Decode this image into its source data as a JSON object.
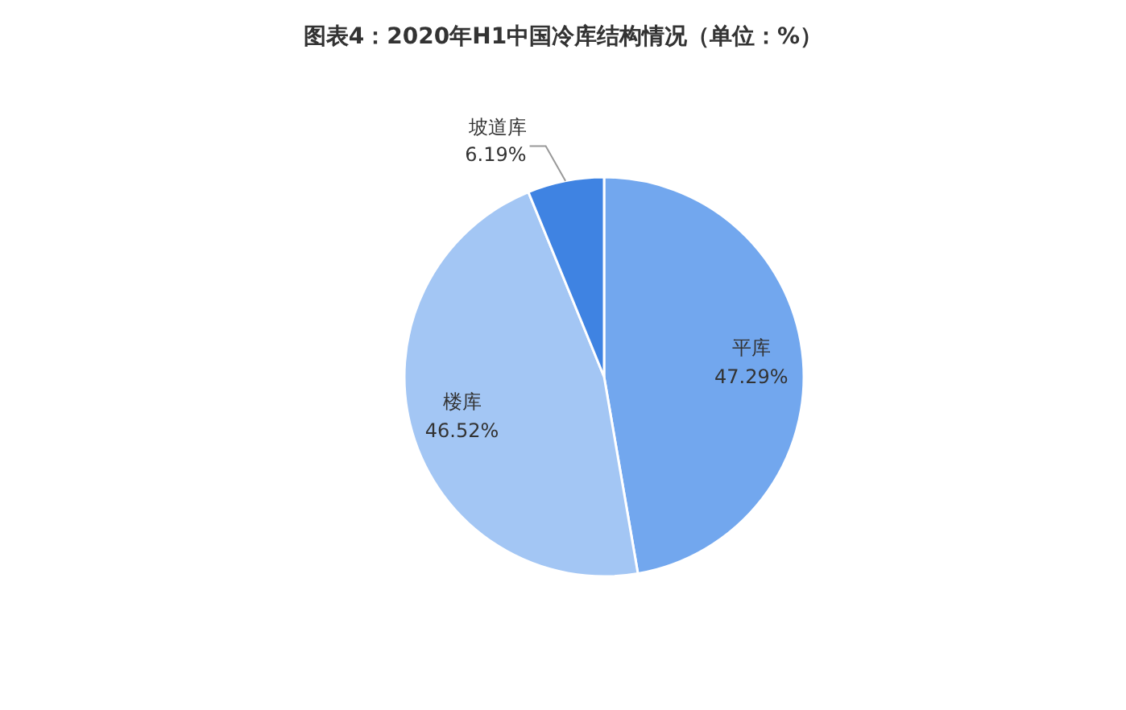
{
  "chart_data": {
    "type": "pie",
    "title": "图表4：2020年H1中国冷库结构情况（单位：%）",
    "categories": [
      "平库",
      "楼库",
      "坡道库"
    ],
    "values": [
      47.29,
      46.52,
      6.19
    ],
    "colors": [
      "#72a7ee",
      "#a3c6f4",
      "#3f83e2"
    ],
    "value_labels": [
      "47.29%",
      "46.52%",
      "6.19%"
    ]
  }
}
